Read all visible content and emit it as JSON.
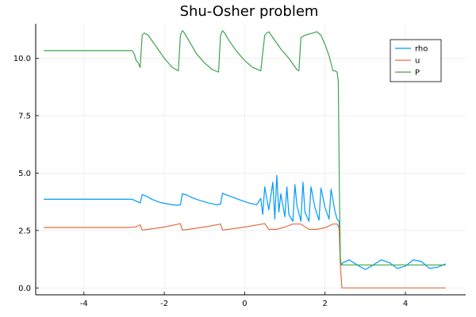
{
  "chart_data": {
    "type": "line",
    "title": "Shu-Osher problem",
    "xlabel": "",
    "ylabel": "",
    "xlim": [
      -5.2,
      5.5
    ],
    "ylim": [
      -0.3,
      11.5
    ],
    "xticks": [
      -4,
      -2,
      0,
      2,
      4
    ],
    "xtick_labels": [
      "-4",
      "-2",
      "0",
      "2",
      "4"
    ],
    "yticks": [
      0,
      2.5,
      5,
      7.5,
      10
    ],
    "ytick_labels": [
      "0.0",
      "2.5",
      "5.0",
      "7.5",
      "10.0"
    ],
    "grid": true,
    "legend_position": "top-right",
    "series": [
      {
        "name": "rho",
        "color": "#009AFA",
        "x": [
          -5.0,
          -3.0,
          -2.8,
          -2.6,
          -2.55,
          -2.45,
          -2.3,
          -2.1,
          -1.9,
          -1.7,
          -1.6,
          -1.55,
          -1.45,
          -1.3,
          -1.1,
          -0.9,
          -0.7,
          -0.6,
          -0.55,
          -0.45,
          -0.3,
          -0.1,
          0.1,
          0.3,
          0.4,
          0.45,
          0.5,
          0.6,
          0.7,
          0.75,
          0.8,
          0.85,
          0.9,
          1.0,
          1.05,
          1.1,
          1.2,
          1.25,
          1.3,
          1.4,
          1.45,
          1.5,
          1.6,
          1.65,
          1.75,
          1.85,
          1.9,
          2.0,
          2.1,
          2.15,
          2.25,
          2.3,
          2.35,
          2.38,
          2.4,
          2.45,
          2.6,
          2.8,
          3.0,
          3.2,
          3.4,
          3.6,
          3.8,
          4.0,
          4.2,
          4.4,
          4.6,
          4.8,
          5.0
        ],
        "y": [
          3.86,
          3.86,
          3.86,
          3.7,
          4.06,
          4.0,
          3.85,
          3.72,
          3.65,
          3.6,
          3.62,
          4.1,
          4.05,
          3.92,
          3.8,
          3.7,
          3.62,
          3.65,
          4.12,
          4.05,
          3.95,
          3.82,
          3.7,
          3.62,
          3.9,
          3.2,
          4.4,
          3.4,
          4.6,
          3.0,
          4.9,
          3.3,
          4.1,
          3.1,
          4.4,
          3.2,
          2.9,
          4.5,
          3.6,
          2.9,
          4.6,
          3.3,
          2.9,
          4.4,
          3.5,
          2.95,
          4.35,
          3.5,
          3.0,
          4.3,
          3.3,
          3.0,
          2.9,
          1.2,
          1.0,
          1.1,
          1.22,
          1.0,
          0.8,
          1.0,
          1.22,
          1.1,
          0.85,
          0.95,
          1.22,
          1.15,
          0.85,
          0.9,
          1.05
        ]
      },
      {
        "name": "u",
        "color": "#E26F46",
        "x": [
          -5.0,
          -2.9,
          -2.7,
          -2.6,
          -2.55,
          -2.4,
          -2.0,
          -1.6,
          -1.55,
          -1.4,
          -1.0,
          -0.6,
          -0.55,
          -0.4,
          0.0,
          0.5,
          0.6,
          0.8,
          1.0,
          1.2,
          1.4,
          1.6,
          1.8,
          2.0,
          2.2,
          2.3,
          2.35,
          2.38,
          2.42,
          3.0,
          4.0,
          5.0
        ],
        "y": [
          2.63,
          2.63,
          2.66,
          2.75,
          2.52,
          2.55,
          2.65,
          2.8,
          2.52,
          2.55,
          2.65,
          2.78,
          2.52,
          2.55,
          2.65,
          2.8,
          2.55,
          2.55,
          2.65,
          2.78,
          2.78,
          2.55,
          2.55,
          2.62,
          2.78,
          2.78,
          2.6,
          1.0,
          0.0,
          0.0,
          0.0,
          0.0
        ]
      },
      {
        "name": "P",
        "color": "#3DA44D",
        "x": [
          -5.0,
          -2.9,
          -2.8,
          -2.75,
          -2.7,
          -2.65,
          -2.6,
          -2.55,
          -2.5,
          -2.4,
          -2.2,
          -2.0,
          -1.8,
          -1.65,
          -1.6,
          -1.55,
          -1.5,
          -1.4,
          -1.2,
          -1.0,
          -0.8,
          -0.65,
          -0.6,
          -0.55,
          -0.5,
          -0.4,
          -0.2,
          0.0,
          0.2,
          0.4,
          0.5,
          0.55,
          0.6,
          0.7,
          0.9,
          1.1,
          1.3,
          1.35,
          1.4,
          1.5,
          1.7,
          1.8,
          1.9,
          2.0,
          2.1,
          2.2,
          2.25,
          2.3,
          2.33,
          2.36,
          2.38,
          2.4,
          2.42,
          2.5,
          3.0,
          4.0,
          5.0
        ],
        "y": [
          10.33,
          10.33,
          10.33,
          10.2,
          9.9,
          9.8,
          9.6,
          11.0,
          11.1,
          11.0,
          10.5,
          10.0,
          9.6,
          9.45,
          11.0,
          11.2,
          11.1,
          10.8,
          10.2,
          9.8,
          9.5,
          9.4,
          11.0,
          11.2,
          11.1,
          10.8,
          10.3,
          9.9,
          9.6,
          9.45,
          11.0,
          11.1,
          11.15,
          10.9,
          10.4,
          10.0,
          9.5,
          9.45,
          10.9,
          11.0,
          11.1,
          11.15,
          11.0,
          10.6,
          10.1,
          9.45,
          9.45,
          9.4,
          9.0,
          4.0,
          1.3,
          1.05,
          1.0,
          1.0,
          1.0,
          1.0,
          1.0
        ]
      }
    ]
  }
}
